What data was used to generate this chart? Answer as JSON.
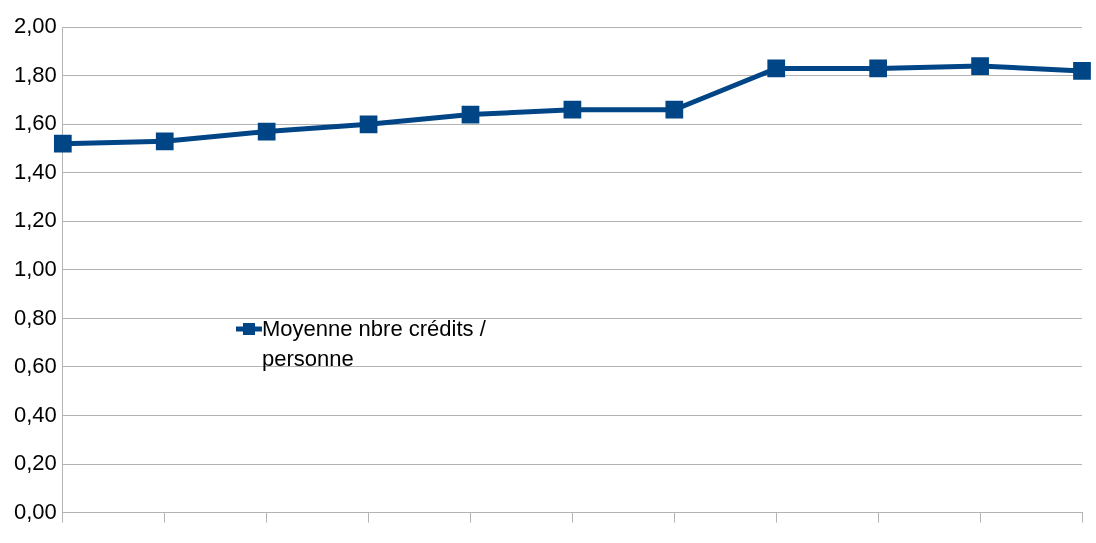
{
  "chart_data": {
    "type": "line",
    "categories": [
      null,
      null,
      null,
      null,
      null,
      null,
      null,
      null,
      null,
      null,
      null
    ],
    "series": [
      {
        "name": "Moyenne nbre crédits / personne",
        "color": "#004586",
        "values": [
          1.52,
          1.53,
          1.57,
          1.6,
          1.64,
          1.66,
          1.66,
          1.83,
          1.83,
          1.84,
          1.82
        ]
      }
    ],
    "ylim": [
      0,
      2
    ],
    "yticks": [
      {
        "value": 0,
        "label": "0,00"
      },
      {
        "value": 0.2,
        "label": "0,20"
      },
      {
        "value": 0.4,
        "label": "0,40"
      },
      {
        "value": 0.6,
        "label": "0,60"
      },
      {
        "value": 0.8,
        "label": "0,80"
      },
      {
        "value": 1,
        "label": "1,00"
      },
      {
        "value": 1.2,
        "label": "1,20"
      },
      {
        "value": 1.4,
        "label": "1,40"
      },
      {
        "value": 1.6,
        "label": "1,60"
      },
      {
        "value": 1.8,
        "label": "1,80"
      },
      {
        "value": 2,
        "label": "2,00"
      }
    ],
    "grid": "y",
    "legend": "left",
    "marker": "square",
    "line_style": "solid"
  }
}
